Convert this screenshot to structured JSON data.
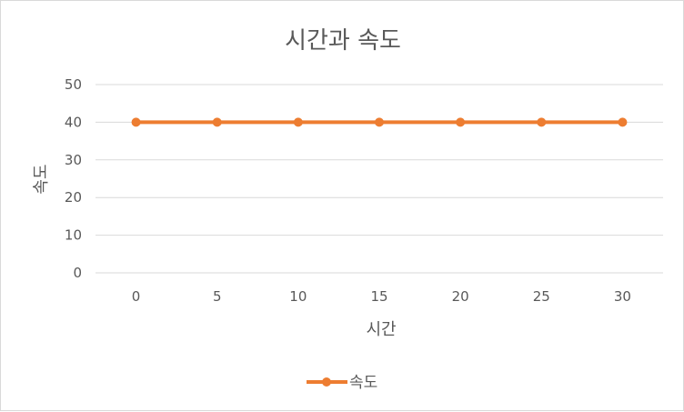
{
  "chart_data": {
    "type": "line",
    "title": "시간과 속도",
    "xlabel": "시간",
    "ylabel": "속도",
    "x": [
      0,
      5,
      10,
      15,
      20,
      25,
      30
    ],
    "series": [
      {
        "name": "속도",
        "values": [
          40,
          40,
          40,
          40,
          40,
          40,
          40
        ],
        "color": "#ED7D31"
      }
    ],
    "ylim": [
      0,
      50
    ],
    "yticks": [
      0,
      10,
      20,
      30,
      40,
      50
    ],
    "grid": true,
    "legend": "bottom"
  }
}
